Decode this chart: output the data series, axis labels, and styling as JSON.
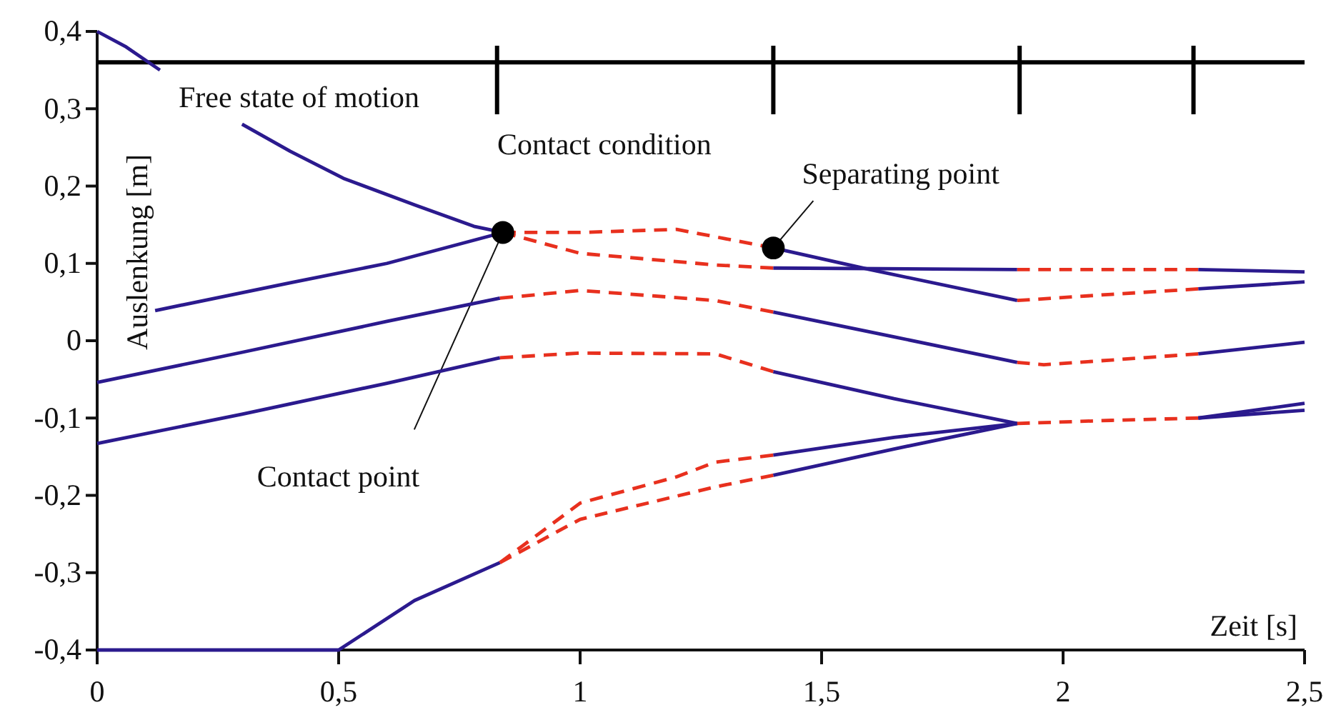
{
  "chart_data": {
    "type": "line",
    "xlabel": "Zeit [s]",
    "ylabel": "Auslenkung [m]",
    "xlim": [
      0,
      2.5
    ],
    "ylim": [
      -0.4,
      0.4
    ],
    "xticks": [
      0,
      {
        "value": 0.5,
        "label": "0,5"
      },
      1,
      {
        "value": 1.5,
        "label": "1,5"
      },
      2,
      {
        "value": 2.5,
        "label": "2,5"
      }
    ],
    "yticks": [
      {
        "value": -0.4,
        "label": "-0,4"
      },
      {
        "value": -0.3,
        "label": "-0,3"
      },
      {
        "value": -0.2,
        "label": "-0,2"
      },
      {
        "value": -0.1,
        "label": "-0,1"
      },
      0,
      {
        "value": 0.1,
        "label": "0,1"
      },
      {
        "value": 0.2,
        "label": "0,2"
      },
      {
        "value": 0.3,
        "label": "0,3"
      },
      {
        "value": 0.4,
        "label": "0,4"
      }
    ],
    "grid": false,
    "series": [
      {
        "color": "#2b1a8e",
        "line_style": "solid",
        "x": [
          0,
          0.06,
          0.13
        ],
        "values": [
          0.4,
          0.38,
          0.35
        ]
      },
      {
        "color": "#2b1a8e",
        "line_style": "solid",
        "x": [
          0.3,
          0.4,
          0.51,
          0.66,
          0.78,
          0.84
        ],
        "values": [
          0.28,
          0.245,
          0.21,
          0.175,
          0.148,
          0.14
        ]
      },
      {
        "color": "#2b1a8e",
        "line_style": "solid",
        "x": [
          0.12,
          0.4,
          0.6,
          0.84
        ],
        "values": [
          0.039,
          0.075,
          0.1,
          0.14
        ]
      },
      {
        "color": "#2b1a8e",
        "line_style": "solid",
        "x": [
          0,
          0.3,
          0.6,
          0.834
        ],
        "values": [
          -0.054,
          -0.015,
          0.025,
          0.055
        ]
      },
      {
        "color": "#2b1a8e",
        "line_style": "solid",
        "x": [
          0,
          0.3,
          0.6,
          0.834
        ],
        "values": [
          -0.133,
          -0.095,
          -0.055,
          -0.022
        ]
      },
      {
        "color": "#2b1a8e",
        "line_style": "solid",
        "x": [
          0,
          0.5,
          0.657,
          0.834
        ],
        "values": [
          -0.4,
          -0.4,
          -0.336,
          -0.287
        ]
      },
      {
        "color": "#e8301e",
        "line_style": "dashed",
        "x": [
          0.84,
          1.0,
          1.2,
          1.4
        ],
        "values": [
          0.14,
          0.14,
          0.144,
          0.12
        ]
      },
      {
        "color": "#e8301e",
        "line_style": "dashed",
        "x": [
          0.84,
          1.0,
          1.28,
          1.4
        ],
        "values": [
          0.14,
          0.113,
          0.098,
          0.094
        ]
      },
      {
        "color": "#e8301e",
        "line_style": "dashed",
        "x": [
          0.834,
          1.0,
          1.28,
          1.4
        ],
        "values": [
          0.055,
          0.065,
          0.052,
          0.037
        ]
      },
      {
        "color": "#e8301e",
        "line_style": "dashed",
        "x": [
          0.834,
          1.0,
          1.28,
          1.4
        ],
        "values": [
          -0.022,
          -0.016,
          -0.017,
          -0.04
        ]
      },
      {
        "color": "#e8301e",
        "line_style": "dashed",
        "x": [
          0.834,
          1.0,
          1.2,
          1.28,
          1.4
        ],
        "values": [
          -0.287,
          -0.21,
          -0.176,
          -0.157,
          -0.148
        ]
      },
      {
        "color": "#e8301e",
        "line_style": "dashed",
        "x": [
          0.834,
          1.0,
          1.28,
          1.4
        ],
        "values": [
          -0.287,
          -0.231,
          -0.189,
          -0.174
        ]
      },
      {
        "color": "#2b1a8e",
        "line_style": "solid",
        "x": [
          1.4,
          1.6,
          1.905
        ],
        "values": [
          0.12,
          0.092,
          0.052
        ]
      },
      {
        "color": "#2b1a8e",
        "line_style": "solid",
        "x": [
          1.4,
          1.905
        ],
        "values": [
          0.094,
          0.092
        ]
      },
      {
        "color": "#2b1a8e",
        "line_style": "solid",
        "x": [
          1.4,
          1.65,
          1.905
        ],
        "values": [
          0.037,
          0.005,
          -0.028
        ]
      },
      {
        "color": "#2b1a8e",
        "line_style": "solid",
        "x": [
          1.4,
          1.65,
          1.905
        ],
        "values": [
          -0.04,
          -0.075,
          -0.107
        ]
      },
      {
        "color": "#2b1a8e",
        "line_style": "solid",
        "x": [
          1.4,
          1.65,
          1.905
        ],
        "values": [
          -0.148,
          -0.125,
          -0.107
        ]
      },
      {
        "color": "#2b1a8e",
        "line_style": "solid",
        "x": [
          1.4,
          1.65,
          1.905
        ],
        "values": [
          -0.174,
          -0.14,
          -0.107
        ]
      },
      {
        "color": "#e8301e",
        "line_style": "dashed",
        "x": [
          1.905,
          2.1,
          2.28
        ],
        "values": [
          0.092,
          0.092,
          0.092
        ]
      },
      {
        "color": "#e8301e",
        "line_style": "dashed",
        "x": [
          1.905,
          2.1,
          2.28
        ],
        "values": [
          0.052,
          0.06,
          0.067
        ]
      },
      {
        "color": "#e8301e",
        "line_style": "dashed",
        "x": [
          1.905,
          1.96,
          2.1,
          2.28
        ],
        "values": [
          -0.028,
          -0.031,
          -0.025,
          -0.017
        ]
      },
      {
        "color": "#e8301e",
        "line_style": "dashed",
        "x": [
          1.905,
          2.1,
          2.28
        ],
        "values": [
          -0.107,
          -0.103,
          -0.1
        ]
      },
      {
        "color": "#2b1a8e",
        "line_style": "solid",
        "x": [
          2.28,
          2.5
        ],
        "values": [
          0.092,
          0.089
        ]
      },
      {
        "color": "#2b1a8e",
        "line_style": "solid",
        "x": [
          2.28,
          2.5
        ],
        "values": [
          0.067,
          0.076
        ]
      },
      {
        "color": "#2b1a8e",
        "line_style": "solid",
        "x": [
          2.28,
          2.5
        ],
        "values": [
          -0.017,
          -0.002
        ]
      },
      {
        "color": "#2b1a8e",
        "line_style": "solid",
        "x": [
          2.28,
          2.5
        ],
        "values": [
          -0.1,
          -0.081
        ]
      },
      {
        "color": "#2b1a8e",
        "line_style": "solid",
        "x": [
          2.28,
          2.5
        ],
        "values": [
          -0.1,
          -0.09
        ]
      },
      {
        "type": "scatter",
        "color": "#000000",
        "marker": "circle",
        "x": [
          0.84,
          1.4
        ],
        "values": [
          0.14,
          0.12
        ]
      }
    ],
    "ref_lines": [
      {
        "axis": "y",
        "value": 0.36,
        "color": "#000000"
      },
      {
        "axis": "x",
        "value": 0.828,
        "color": "#000000"
      },
      {
        "axis": "x",
        "value": 1.4,
        "color": "#000000"
      },
      {
        "axis": "x",
        "value": 1.91,
        "color": "#000000"
      },
      {
        "axis": "x",
        "value": 2.27,
        "color": "#000000"
      }
    ],
    "annotations": [
      "Free state of motion",
      "Contact condition",
      {
        "text": "Contact point",
        "x": 0.84,
        "y": 0.14
      },
      {
        "text": "Separating point",
        "x": 1.4,
        "y": 0.12
      }
    ]
  }
}
